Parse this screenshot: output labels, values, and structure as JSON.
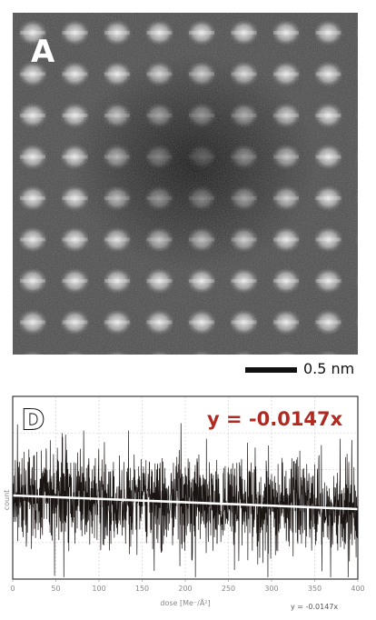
{
  "panel_a": {
    "letter": "A",
    "scale_bar_label": "0.5 nm"
  },
  "panel_d": {
    "letter": "D",
    "equation": "y = -0.0147x",
    "equation_small": "y = -0.0147x"
  },
  "chart_data": {
    "type": "line",
    "title": "",
    "xlabel": "dose [Me⁻/Å²]",
    "ylabel": "count",
    "xlim": [
      0,
      400
    ],
    "x_ticks": [
      "0",
      "50",
      "100",
      "150",
      "200",
      "250",
      "300",
      "350",
      "400"
    ],
    "grid": true,
    "series": [
      {
        "name": "y = -0.0147x",
        "kind": "linear-fit",
        "slope": -0.0147,
        "x": [
          0,
          400
        ]
      }
    ]
  },
  "colors": {
    "trace": "#1a1412",
    "fit_line": "#ffffff",
    "equation": "#b02a21",
    "grid": "#cfcfcf"
  }
}
